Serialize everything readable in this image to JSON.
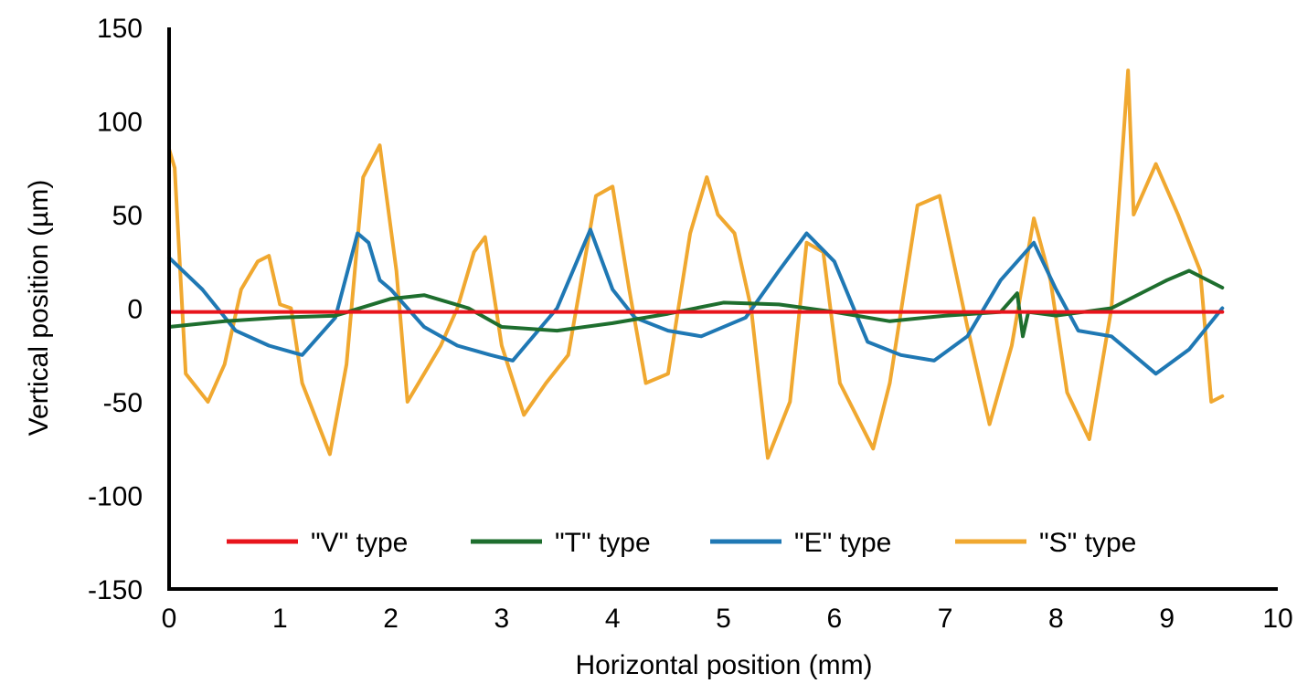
{
  "chart_data": {
    "type": "line",
    "xlabel": "Horizontal position (mm)",
    "ylabel": "Vertical position (µm)",
    "xlim": [
      0,
      10
    ],
    "ylim": [
      -150,
      150
    ],
    "x_ticks": [
      "0",
      "1",
      "2",
      "3",
      "4",
      "5",
      "6",
      "7",
      "8",
      "9",
      "10"
    ],
    "y_ticks": [
      "150",
      "100",
      "50",
      "0",
      "-50",
      "-100",
      "-150"
    ],
    "grid": false,
    "legend_position": "bottom",
    "series": [
      {
        "name": "\"V\" type",
        "color": "#e8141c",
        "x": [
          0,
          1,
          2,
          3,
          4,
          5,
          6,
          7,
          8,
          9,
          9.5
        ],
        "y": [
          -2,
          -2,
          -2,
          -2,
          -2,
          -2,
          -2,
          -2,
          -2,
          -2,
          -2
        ]
      },
      {
        "name": "\"T\" type",
        "color": "#1e6e2e",
        "x": [
          0,
          0.5,
          1.0,
          1.5,
          2.0,
          2.3,
          2.7,
          3.0,
          3.5,
          4.0,
          4.5,
          5.0,
          5.5,
          6.0,
          6.5,
          7.0,
          7.5,
          7.65,
          7.7,
          7.75,
          8.0,
          8.5,
          9.0,
          9.2,
          9.5
        ],
        "y": [
          -10,
          -7,
          -5,
          -4,
          5,
          7,
          0,
          -10,
          -12,
          -8,
          -3,
          3,
          2,
          -2,
          -7,
          -4,
          -2,
          8,
          -15,
          -2,
          -4,
          0,
          15,
          20,
          11
        ]
      },
      {
        "name": "\"E\" type",
        "color": "#1f78b4",
        "x": [
          0,
          0.3,
          0.6,
          0.9,
          1.2,
          1.5,
          1.7,
          1.8,
          1.9,
          2.0,
          2.3,
          2.6,
          2.9,
          3.1,
          3.5,
          3.8,
          4.0,
          4.2,
          4.5,
          4.8,
          5.2,
          5.5,
          5.75,
          6.0,
          6.3,
          6.6,
          6.9,
          7.2,
          7.5,
          7.8,
          8.0,
          8.2,
          8.5,
          8.9,
          9.2,
          9.5
        ],
        "y": [
          27,
          10,
          -12,
          -20,
          -25,
          -5,
          40,
          35,
          15,
          10,
          -10,
          -20,
          -25,
          -28,
          0,
          42,
          10,
          -5,
          -12,
          -15,
          -5,
          20,
          40,
          25,
          -18,
          -25,
          -28,
          -15,
          15,
          35,
          10,
          -12,
          -15,
          -35,
          -22,
          0
        ]
      },
      {
        "name": "\"S\" type",
        "color": "#f0a830",
        "x": [
          0,
          0.05,
          0.15,
          0.35,
          0.5,
          0.65,
          0.8,
          0.9,
          1.0,
          1.1,
          1.2,
          1.45,
          1.6,
          1.75,
          1.9,
          2.05,
          2.15,
          2.3,
          2.45,
          2.6,
          2.75,
          2.85,
          3.0,
          3.2,
          3.4,
          3.6,
          3.85,
          4.0,
          4.15,
          4.3,
          4.5,
          4.7,
          4.85,
          4.95,
          5.1,
          5.25,
          5.4,
          5.6,
          5.75,
          5.9,
          6.05,
          6.35,
          6.5,
          6.75,
          6.95,
          7.2,
          7.4,
          7.6,
          7.8,
          7.95,
          8.1,
          8.3,
          8.5,
          8.65,
          8.7,
          8.9,
          9.1,
          9.3,
          9.4,
          9.5
        ],
        "y": [
          85,
          75,
          -35,
          -50,
          -30,
          10,
          25,
          28,
          2,
          0,
          -40,
          -78,
          -30,
          70,
          87,
          20,
          -50,
          -35,
          -20,
          0,
          30,
          38,
          -20,
          -57,
          -40,
          -25,
          60,
          65,
          10,
          -40,
          -35,
          40,
          70,
          50,
          40,
          0,
          -80,
          -50,
          35,
          30,
          -40,
          -75,
          -40,
          55,
          60,
          -10,
          -62,
          -20,
          48,
          15,
          -45,
          -70,
          0,
          127,
          50,
          77,
          50,
          20,
          -50,
          -47
        ]
      }
    ]
  }
}
